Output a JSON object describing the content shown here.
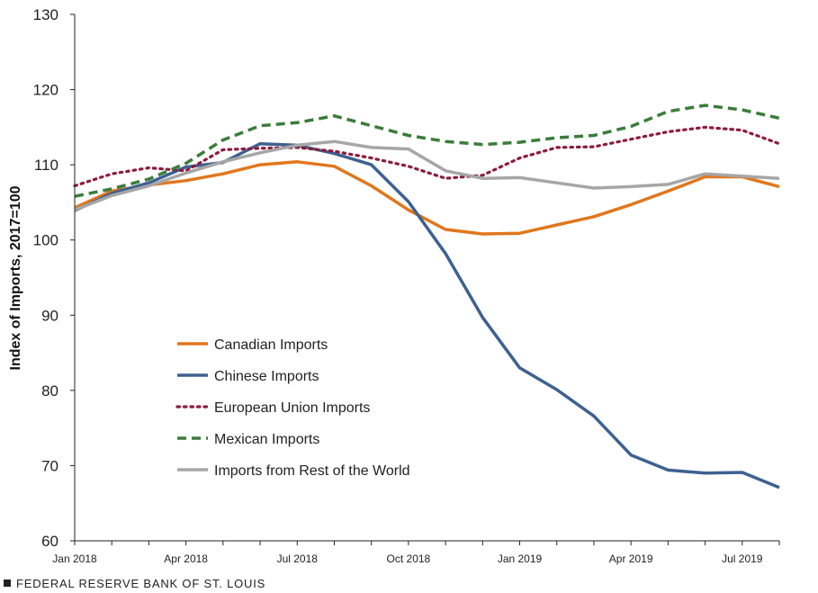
{
  "chart_data": {
    "type": "line",
    "title": "",
    "xlabel": "",
    "ylabel": "Index of Imports, 2017=100",
    "ylim": [
      60,
      130
    ],
    "yticks": [
      "60",
      "70",
      "80",
      "90",
      "100",
      "110",
      "120",
      "130"
    ],
    "x": [
      "Jan 2018",
      "Feb 2018",
      "Mar 2018",
      "Apr 2018",
      "May 2018",
      "Jun 2018",
      "Jul 2018",
      "Aug 2018",
      "Sep 2018",
      "Oct 2018",
      "Nov 2018",
      "Dec 2018",
      "Jan 2019",
      "Feb 2019",
      "Mar 2019",
      "Apr 2019",
      "May 2019",
      "Jun 2019",
      "Jul 2019",
      "Aug 2019"
    ],
    "xtick_labels": [
      {
        "label": "Jan 2018",
        "index": 0
      },
      {
        "label": "Apr 2018",
        "index": 3
      },
      {
        "label": "Jul 2018",
        "index": 6
      },
      {
        "label": "Oct 2018",
        "index": 9
      },
      {
        "label": "Jan 2019",
        "index": 12
      },
      {
        "label": "Apr 2019",
        "index": 15
      },
      {
        "label": "Jul 2019",
        "index": 18
      }
    ],
    "grid": false,
    "legend_position": "lower-left",
    "series": [
      {
        "name": "Canadian Imports",
        "color": "#E1771D",
        "style": "solid",
        "values": [
          104.3,
          106.5,
          107.3,
          107.9,
          108.8,
          110.0,
          110.4,
          109.8,
          107.2,
          104.0,
          101.4,
          100.8,
          100.9,
          102.0,
          103.1,
          104.7,
          106.5,
          108.4,
          108.4,
          107.1
        ]
      },
      {
        "name": "Chinese Imports",
        "color": "#3D6190",
        "style": "solid",
        "values": [
          103.9,
          106.2,
          107.6,
          109.7,
          110.3,
          112.8,
          112.6,
          111.5,
          110.0,
          105.1,
          98.2,
          89.7,
          83.0,
          80.1,
          76.6,
          71.4,
          69.4,
          69.0,
          69.1,
          67.1
        ]
      },
      {
        "name": "European Union Imports",
        "color": "#8C1C3C",
        "style": "dotted",
        "values": [
          107.2,
          108.8,
          109.6,
          109.2,
          112.0,
          112.2,
          112.3,
          111.8,
          110.9,
          109.8,
          108.2,
          108.6,
          110.9,
          112.3,
          112.4,
          113.4,
          114.4,
          115.0,
          114.6,
          112.8
        ]
      },
      {
        "name": "Mexican Imports",
        "color": "#3B7D3A",
        "style": "dashed",
        "values": [
          105.8,
          106.8,
          108.1,
          110.2,
          113.3,
          115.2,
          115.6,
          116.5,
          115.2,
          113.9,
          113.1,
          112.7,
          113.0,
          113.6,
          113.9,
          115.1,
          117.1,
          117.9,
          117.3,
          116.2
        ]
      },
      {
        "name": "Imports from Rest of the World",
        "color": "#A6A6A6",
        "style": "solid",
        "values": [
          104.0,
          105.9,
          107.2,
          108.9,
          110.4,
          111.6,
          112.6,
          113.1,
          112.3,
          112.1,
          109.2,
          108.2,
          108.3,
          107.6,
          106.9,
          107.1,
          107.4,
          108.8,
          108.5,
          108.2
        ]
      }
    ]
  },
  "footer": {
    "text": "FEDERAL RESERVE BANK OF ST. LOUIS"
  }
}
